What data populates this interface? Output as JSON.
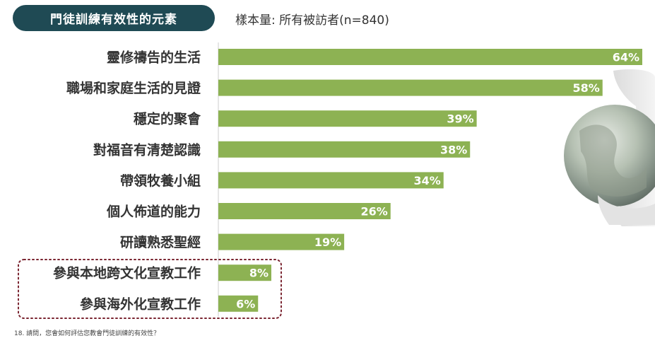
{
  "header": {
    "title": "門徒訓練有效性的元素",
    "sample_size": "樣本量: 所有被訪者(n=840)"
  },
  "footnote": "18. 請問，您會如何評估您教會門徒訓練的有效性？",
  "colors": {
    "bar": "#8db253",
    "title_pill": "#1f4a54",
    "highlight_border": "#7a2430"
  },
  "chart_data": {
    "type": "bar",
    "orientation": "horizontal",
    "categories": [
      "靈修禱告的生活",
      "職場和家庭生活的見證",
      "穩定的聚會",
      "對福音有清楚認識",
      "帶領牧養小組",
      "個人佈道的能力",
      "研讀熟悉聖經",
      "參與本地跨文化宣教工作",
      "參與海外化宣教工作"
    ],
    "values": [
      64,
      58,
      39,
      38,
      34,
      26,
      19,
      8,
      6
    ],
    "value_labels": [
      "64%",
      "58%",
      "39%",
      "38%",
      "34%",
      "26%",
      "19%",
      "8%",
      "6%"
    ],
    "highlighted_categories": [
      "參與本地跨文化宣教工作",
      "參與海外化宣教工作"
    ],
    "xlim": [
      0,
      100
    ],
    "title": "",
    "xlabel": "",
    "ylabel": "",
    "grid": false,
    "legend": "none"
  }
}
